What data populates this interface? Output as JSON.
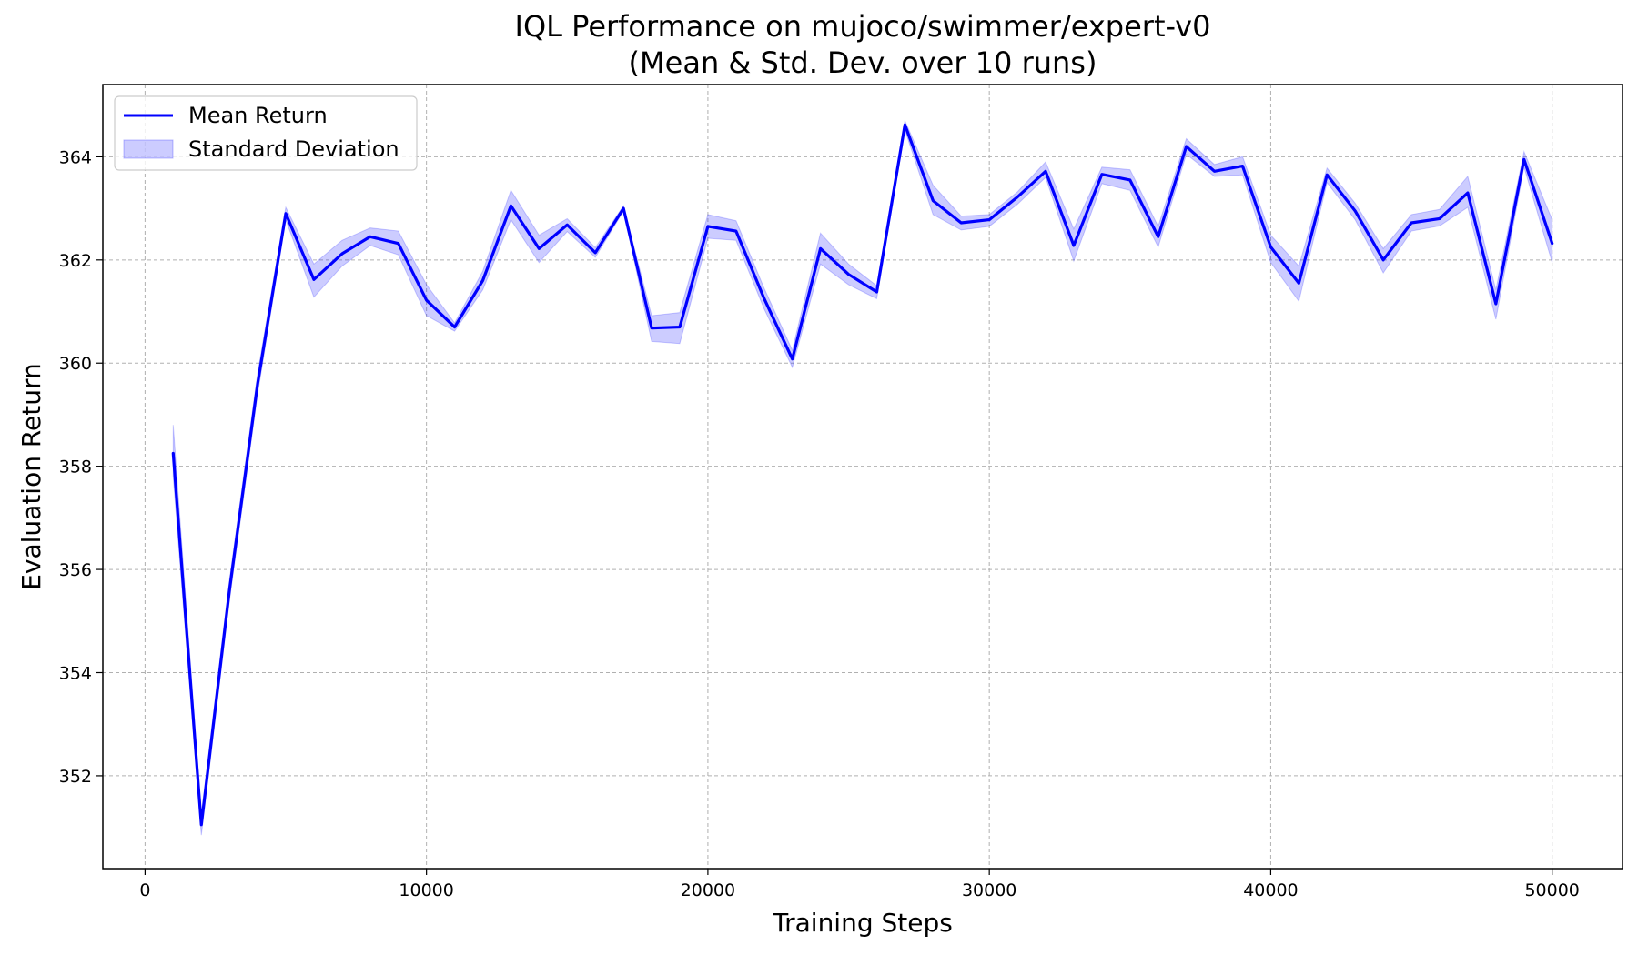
{
  "chart_data": {
    "type": "line",
    "title": "IQL Performance on mujoco/swimmer/expert-v0",
    "subtitle": "(Mean & Std. Dev. over 10 runs)",
    "xlabel": "Training Steps",
    "ylabel": "Evaluation Return",
    "xlim": [
      -1500,
      52500
    ],
    "ylim": [
      350.2,
      365.4
    ],
    "x_ticks": [
      0,
      10000,
      20000,
      30000,
      40000,
      50000
    ],
    "y_ticks": [
      352,
      354,
      356,
      358,
      360,
      362,
      364
    ],
    "grid": true,
    "legend_position": "top-left",
    "colors": {
      "mean_line": "#0000ff",
      "std_fill": "#0000ff",
      "grid": "#b0b0b0"
    },
    "x": [
      1000,
      2000,
      3000,
      4000,
      5000,
      6000,
      7000,
      8000,
      9000,
      10000,
      11000,
      12000,
      13000,
      14000,
      15000,
      16000,
      17000,
      18000,
      19000,
      20000,
      21000,
      22000,
      23000,
      24000,
      25000,
      26000,
      27000,
      28000,
      29000,
      30000,
      31000,
      32000,
      33000,
      34000,
      35000,
      36000,
      37000,
      38000,
      39000,
      40000,
      41000,
      42000,
      43000,
      44000,
      45000,
      46000,
      47000,
      48000,
      49000,
      50000
    ],
    "series": [
      {
        "name": "Mean Return",
        "values": [
          358.25,
          351.05,
          355.6,
          359.6,
          362.9,
          361.62,
          362.12,
          362.45,
          362.32,
          361.22,
          360.7,
          361.6,
          363.05,
          362.22,
          362.68,
          362.14,
          363.0,
          360.68,
          360.7,
          362.65,
          362.56,
          361.25,
          360.08,
          362.22,
          361.72,
          361.38,
          364.62,
          363.15,
          362.72,
          362.78,
          363.22,
          363.72,
          362.28,
          363.66,
          363.55,
          362.45,
          364.2,
          363.72,
          363.82,
          362.25,
          361.55,
          363.65,
          362.95,
          362.0,
          362.72,
          362.8,
          363.3,
          361.15,
          363.95,
          362.32
        ],
        "upper": [
          358.8,
          351.25,
          355.8,
          359.8,
          363.02,
          361.92,
          362.38,
          362.62,
          362.56,
          361.52,
          360.78,
          361.78,
          363.35,
          362.48,
          362.8,
          362.24,
          363.05,
          360.92,
          360.98,
          362.88,
          362.76,
          361.45,
          360.25,
          362.52,
          361.92,
          361.5,
          364.7,
          363.45,
          362.85,
          362.88,
          363.32,
          363.9,
          362.6,
          363.8,
          363.75,
          362.65,
          364.35,
          363.85,
          364.0,
          362.48,
          361.88,
          363.78,
          363.1,
          362.22,
          362.88,
          362.98,
          363.62,
          361.42,
          364.1,
          362.78
        ],
        "lower": [
          357.8,
          350.85,
          355.4,
          359.4,
          362.78,
          361.28,
          361.88,
          362.28,
          362.1,
          360.92,
          360.62,
          361.42,
          362.78,
          361.95,
          362.55,
          362.05,
          362.95,
          360.42,
          360.38,
          362.42,
          362.38,
          361.05,
          359.92,
          361.92,
          361.52,
          361.25,
          364.52,
          362.88,
          362.58,
          362.65,
          363.08,
          363.6,
          361.98,
          363.48,
          363.35,
          362.25,
          364.05,
          363.62,
          363.65,
          361.95,
          361.2,
          363.5,
          362.78,
          361.75,
          362.56,
          362.66,
          363.02,
          360.85,
          363.8,
          361.95
        ]
      }
    ],
    "legend": {
      "mean_label": "Mean Return",
      "std_label": "Standard Deviation"
    }
  }
}
